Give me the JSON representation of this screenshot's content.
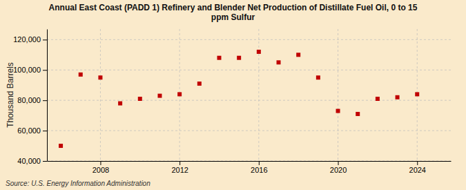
{
  "chart_data": {
    "type": "scatter",
    "title": "Annual East Coast (PADD 1) Refinery and Blender Net Production of Distillate Fuel Oil, 0 to 15\nppm Sulfur",
    "ylabel": "Thousand Barrels",
    "source": "Source: U.S. Energy Information Administration",
    "x": [
      2006,
      2007,
      2008,
      2009,
      2010,
      2011,
      2012,
      2013,
      2014,
      2015,
      2016,
      2017,
      2018,
      2019,
      2020,
      2021,
      2022,
      2023,
      2024
    ],
    "values": [
      50000,
      97000,
      95000,
      78000,
      81000,
      83000,
      84000,
      91000,
      108000,
      108000,
      112000,
      105000,
      110000,
      95000,
      73000,
      71000,
      81000,
      82000,
      84000
    ],
    "color": "#c00000",
    "marker": "square",
    "xlim": [
      2005.3,
      2025.7
    ],
    "xticks": [
      2008,
      2012,
      2016,
      2020,
      2024
    ],
    "ylim": [
      40000,
      127000
    ],
    "yticks": [
      {
        "value": 40000,
        "label": "40,000"
      },
      {
        "value": 60000,
        "label": "60,000"
      },
      {
        "value": 80000,
        "label": "80,000"
      },
      {
        "value": 100000,
        "label": "100,000"
      },
      {
        "value": 120000,
        "label": "120,000"
      }
    ],
    "grid": true
  }
}
